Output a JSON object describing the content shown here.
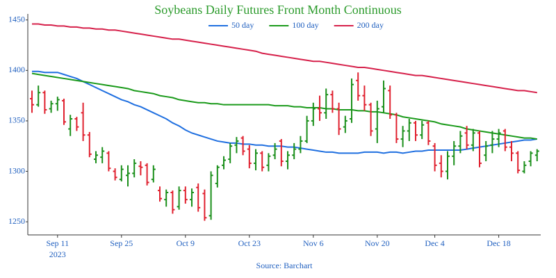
{
  "chart_data": {
    "type": "ohlc",
    "title": "Soybeans Daily Futures Front Month Continuous",
    "source": "Source: Barchart",
    "categories": [
      null,
      null,
      null,
      null,
      "Sep 11",
      null,
      null,
      null,
      null,
      null,
      null,
      null,
      null,
      null,
      "Sep 25",
      null,
      null,
      null,
      null,
      null,
      null,
      null,
      null,
      null,
      "Oct 9",
      null,
      null,
      null,
      null,
      null,
      null,
      null,
      null,
      null,
      "Oct 23",
      null,
      null,
      null,
      null,
      null,
      null,
      null,
      null,
      null,
      "Nov 6",
      null,
      null,
      null,
      null,
      null,
      null,
      null,
      null,
      null,
      "Nov 20",
      null,
      null,
      null,
      null,
      null,
      null,
      null,
      null,
      "Dec 4",
      null,
      null,
      null,
      null,
      null,
      null,
      null,
      null,
      null,
      "Dec 18",
      null,
      null,
      null,
      null,
      null,
      null
    ],
    "year_label": "2023",
    "open": [
      1372,
      1366,
      1378,
      1362,
      1367,
      1370,
      1342,
      1352,
      1358,
      1336,
      1312,
      1314,
      1318,
      1300,
      1292,
      1296,
      1298,
      1305,
      1306,
      1292,
      1281,
      1272,
      1279,
      1265,
      1281,
      1272,
      1284,
      1278,
      1256,
      1288,
      1306,
      1312,
      1326,
      1333,
      1322,
      1308,
      1318,
      1306,
      1316,
      1330,
      1310,
      1316,
      1322,
      1330,
      1350,
      1362,
      1358,
      1376,
      1362,
      1344,
      1352,
      1390,
      1375,
      1366,
      1342,
      1364,
      1380,
      1356,
      1332,
      1340,
      1348,
      1336,
      1348,
      1325,
      1308,
      1300,
      1315,
      1325,
      1338,
      1326,
      1338,
      1316,
      1326,
      1332,
      1340,
      1324,
      1318,
      1300,
      1310,
      1316
    ],
    "high": [
      1380,
      1385,
      1380,
      1370,
      1374,
      1372,
      1356,
      1354,
      1368,
      1339,
      1320,
      1324,
      1320,
      1303,
      1306,
      1306,
      1312,
      1310,
      1308,
      1306,
      1285,
      1282,
      1281,
      1285,
      1285,
      1283,
      1288,
      1282,
      1300,
      1306,
      1315,
      1328,
      1334,
      1335,
      1326,
      1322,
      1320,
      1318,
      1328,
      1332,
      1320,
      1328,
      1335,
      1355,
      1368,
      1375,
      1382,
      1380,
      1368,
      1355,
      1392,
      1398,
      1385,
      1368,
      1370,
      1390,
      1385,
      1358,
      1345,
      1352,
      1350,
      1350,
      1350,
      1328,
      1316,
      1320,
      1330,
      1340,
      1345,
      1342,
      1340,
      1330,
      1340,
      1342,
      1342,
      1330,
      1320,
      1310,
      1320,
      1322
    ],
    "low": [
      1358,
      1364,
      1357,
      1358,
      1360,
      1346,
      1335,
      1340,
      1330,
      1314,
      1308,
      1308,
      1300,
      1291,
      1290,
      1285,
      1294,
      1296,
      1286,
      1289,
      1270,
      1265,
      1258,
      1262,
      1268,
      1265,
      1260,
      1251,
      1252,
      1284,
      1302,
      1308,
      1318,
      1316,
      1303,
      1301,
      1300,
      1300,
      1312,
      1305,
      1302,
      1312,
      1318,
      1328,
      1345,
      1350,
      1352,
      1358,
      1336,
      1338,
      1348,
      1370,
      1360,
      1335,
      1328,
      1358,
      1352,
      1328,
      1324,
      1330,
      1330,
      1332,
      1326,
      1300,
      1294,
      1292,
      1306,
      1318,
      1322,
      1320,
      1304,
      1310,
      1318,
      1324,
      1320,
      1310,
      1298,
      1298,
      1305,
      1310
    ],
    "close": [
      1366,
      1378,
      1361,
      1367,
      1371,
      1349,
      1352,
      1344,
      1336,
      1317,
      1316,
      1320,
      1303,
      1294,
      1302,
      1298,
      1308,
      1304,
      1289,
      1302,
      1273,
      1279,
      1262,
      1281,
      1272,
      1279,
      1264,
      1254,
      1296,
      1304,
      1311,
      1325,
      1330,
      1320,
      1308,
      1318,
      1304,
      1315,
      1322,
      1310,
      1316,
      1322,
      1330,
      1350,
      1362,
      1358,
      1376,
      1362,
      1342,
      1350,
      1386,
      1375,
      1366,
      1340,
      1362,
      1382,
      1356,
      1332,
      1340,
      1348,
      1336,
      1346,
      1330,
      1306,
      1300,
      1315,
      1325,
      1335,
      1326,
      1338,
      1308,
      1325,
      1332,
      1338,
      1324,
      1318,
      1301,
      1306,
      1318,
      1320
    ],
    "up_color": "#1a8f1a",
    "down_color": "#e0202e",
    "series": [
      {
        "name": "50 day",
        "color": "#1f6fe0",
        "values": [
          1399,
          1399,
          1398,
          1398,
          1398,
          1396,
          1394,
          1392,
          1389,
          1386,
          1383,
          1380,
          1377,
          1374,
          1371,
          1369,
          1366,
          1364,
          1361,
          1358,
          1355,
          1352,
          1348,
          1345,
          1341,
          1338,
          1336,
          1334,
          1332,
          1330,
          1329,
          1328,
          1328,
          1327,
          1327,
          1326,
          1326,
          1325,
          1325,
          1325,
          1324,
          1324,
          1323,
          1322,
          1321,
          1320,
          1319,
          1319,
          1318,
          1318,
          1318,
          1318,
          1319,
          1319,
          1319,
          1318,
          1319,
          1319,
          1318,
          1319,
          1320,
          1320,
          1321,
          1321,
          1321,
          1321,
          1321,
          1321,
          1322,
          1323,
          1324,
          1325,
          1326,
          1327,
          1328,
          1329,
          1330,
          1331,
          1331,
          1332
        ]
      },
      {
        "name": "100 day",
        "color": "#1a9a1a",
        "values": [
          1397,
          1396,
          1395,
          1394,
          1393,
          1392,
          1391,
          1390,
          1389,
          1388,
          1387,
          1386,
          1385,
          1384,
          1383,
          1382,
          1380,
          1379,
          1378,
          1377,
          1375,
          1374,
          1373,
          1371,
          1370,
          1369,
          1368,
          1368,
          1367,
          1367,
          1366,
          1366,
          1366,
          1366,
          1366,
          1366,
          1366,
          1366,
          1365,
          1365,
          1365,
          1364,
          1364,
          1363,
          1363,
          1363,
          1362,
          1362,
          1361,
          1361,
          1361,
          1360,
          1360,
          1359,
          1359,
          1358,
          1357,
          1356,
          1354,
          1353,
          1352,
          1351,
          1350,
          1349,
          1347,
          1346,
          1345,
          1344,
          1342,
          1341,
          1340,
          1339,
          1338,
          1337,
          1336,
          1335,
          1334,
          1333,
          1333,
          1332
        ]
      },
      {
        "name": "200 day",
        "color": "#d6204a",
        "values": [
          1446,
          1446,
          1445,
          1445,
          1444,
          1444,
          1443,
          1443,
          1442,
          1442,
          1441,
          1441,
          1440,
          1440,
          1439,
          1438,
          1437,
          1436,
          1435,
          1434,
          1433,
          1432,
          1431,
          1431,
          1430,
          1429,
          1428,
          1427,
          1426,
          1425,
          1424,
          1423,
          1422,
          1421,
          1420,
          1419,
          1417,
          1416,
          1415,
          1414,
          1413,
          1412,
          1411,
          1410,
          1409,
          1409,
          1408,
          1407,
          1406,
          1405,
          1404,
          1403,
          1403,
          1402,
          1401,
          1400,
          1399,
          1398,
          1397,
          1396,
          1395,
          1395,
          1394,
          1393,
          1392,
          1391,
          1390,
          1389,
          1388,
          1387,
          1386,
          1385,
          1384,
          1383,
          1382,
          1381,
          1380,
          1380,
          1379,
          1378
        ]
      }
    ],
    "ylim": [
      1237,
      1456
    ],
    "yticks": [
      1250,
      1300,
      1350,
      1400,
      1450
    ],
    "grid": false
  }
}
